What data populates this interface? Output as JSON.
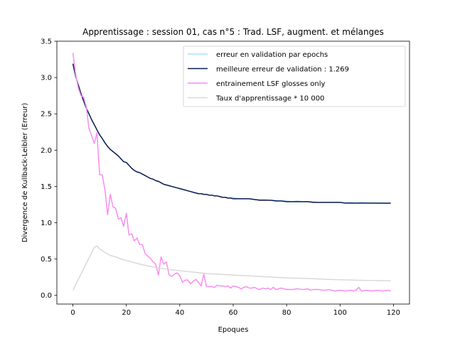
{
  "chart_data": {
    "type": "line",
    "title": "Apprentissage : session 01, cas n°5 : Trad. LSF, augment. et mélanges",
    "xlabel": "Epoques",
    "ylabel": "Divergence de Kullback-Leibler (Erreur)",
    "xlim": [
      -6,
      126
    ],
    "ylim": [
      -0.12,
      3.5
    ],
    "xticks": [
      0,
      20,
      40,
      60,
      80,
      100,
      120
    ],
    "yticks": [
      0.0,
      0.5,
      1.0,
      1.5,
      2.0,
      2.5,
      3.0,
      3.5
    ],
    "xtick_labels": [
      "0",
      "20",
      "40",
      "60",
      "80",
      "100",
      "120"
    ],
    "ytick_labels": [
      "0.0",
      "0.5",
      "1.0",
      "1.5",
      "2.0",
      "2.5",
      "3.0",
      "3.5"
    ],
    "grid": false,
    "legend_position": "top-right",
    "series": [
      {
        "name": "erreur en validation par epochs",
        "color": "#a6e3f7",
        "points": [
          [
            0,
            3.19
          ],
          [
            1,
            3.02
          ],
          [
            2,
            2.9
          ],
          [
            3,
            2.78
          ],
          [
            4,
            2.68
          ],
          [
            5,
            2.58
          ],
          [
            6,
            2.5
          ],
          [
            7,
            2.42
          ],
          [
            8,
            2.35
          ],
          [
            9,
            2.28
          ],
          [
            10,
            2.21
          ],
          [
            11,
            2.16
          ],
          [
            12,
            2.1
          ],
          [
            13,
            2.05
          ],
          [
            14,
            2.01
          ],
          [
            15,
            1.98
          ],
          [
            16,
            1.95
          ],
          [
            17,
            1.92
          ],
          [
            18,
            1.88
          ],
          [
            19,
            1.84
          ],
          [
            20,
            1.83
          ],
          [
            21,
            1.79
          ],
          [
            22,
            1.75
          ],
          [
            23,
            1.72
          ],
          [
            24,
            1.7
          ],
          [
            25,
            1.69
          ],
          [
            26,
            1.67
          ],
          [
            27,
            1.65
          ],
          [
            28,
            1.63
          ],
          [
            29,
            1.61
          ],
          [
            30,
            1.6
          ],
          [
            31,
            1.58
          ],
          [
            32,
            1.57
          ],
          [
            33,
            1.55
          ],
          [
            34,
            1.53
          ],
          [
            35,
            1.52
          ],
          [
            36,
            1.51
          ],
          [
            37,
            1.5
          ],
          [
            38,
            1.49
          ],
          [
            39,
            1.48
          ],
          [
            40,
            1.47
          ],
          [
            41,
            1.46
          ],
          [
            42,
            1.45
          ],
          [
            43,
            1.44
          ],
          [
            44,
            1.43
          ],
          [
            45,
            1.42
          ],
          [
            46,
            1.41
          ],
          [
            47,
            1.4
          ],
          [
            48,
            1.4
          ],
          [
            49,
            1.39
          ],
          [
            50,
            1.39
          ],
          [
            51,
            1.38
          ],
          [
            52,
            1.38
          ],
          [
            53,
            1.37
          ],
          [
            54,
            1.37
          ],
          [
            55,
            1.36
          ],
          [
            56,
            1.35
          ],
          [
            57,
            1.35
          ],
          [
            58,
            1.34
          ],
          [
            59,
            1.34
          ],
          [
            60,
            1.35
          ],
          [
            62,
            1.33
          ],
          [
            64,
            1.33
          ],
          [
            66,
            1.33
          ],
          [
            68,
            1.32
          ],
          [
            70,
            1.32
          ],
          [
            72,
            1.32
          ],
          [
            74,
            1.31
          ],
          [
            76,
            1.31
          ],
          [
            78,
            1.3
          ],
          [
            80,
            1.3
          ],
          [
            82,
            1.29
          ],
          [
            84,
            1.3
          ],
          [
            86,
            1.29
          ],
          [
            88,
            1.29
          ],
          [
            90,
            1.29
          ],
          [
            92,
            1.28
          ],
          [
            94,
            1.28
          ],
          [
            96,
            1.28
          ],
          [
            98,
            1.28
          ],
          [
            100,
            1.28
          ],
          [
            102,
            1.27
          ],
          [
            104,
            1.28
          ],
          [
            106,
            1.27
          ],
          [
            108,
            1.28
          ],
          [
            110,
            1.27
          ],
          [
            112,
            1.27
          ],
          [
            114,
            1.27
          ],
          [
            116,
            1.27
          ],
          [
            119,
            1.27
          ]
        ]
      },
      {
        "name": "meilleure erreur de validation : 1.269",
        "color": "#0b1a4e",
        "points": [
          [
            0,
            3.19
          ],
          [
            1,
            3.02
          ],
          [
            2,
            2.9
          ],
          [
            3,
            2.78
          ],
          [
            4,
            2.68
          ],
          [
            5,
            2.58
          ],
          [
            6,
            2.5
          ],
          [
            7,
            2.42
          ],
          [
            8,
            2.35
          ],
          [
            9,
            2.28
          ],
          [
            10,
            2.21
          ],
          [
            11,
            2.16
          ],
          [
            12,
            2.1
          ],
          [
            13,
            2.05
          ],
          [
            14,
            2.01
          ],
          [
            15,
            1.98
          ],
          [
            16,
            1.95
          ],
          [
            17,
            1.92
          ],
          [
            18,
            1.88
          ],
          [
            19,
            1.84
          ],
          [
            20,
            1.83
          ],
          [
            21,
            1.79
          ],
          [
            22,
            1.75
          ],
          [
            23,
            1.72
          ],
          [
            24,
            1.7
          ],
          [
            25,
            1.69
          ],
          [
            26,
            1.67
          ],
          [
            27,
            1.65
          ],
          [
            28,
            1.63
          ],
          [
            29,
            1.61
          ],
          [
            30,
            1.6
          ],
          [
            31,
            1.58
          ],
          [
            32,
            1.57
          ],
          [
            33,
            1.55
          ],
          [
            34,
            1.53
          ],
          [
            35,
            1.52
          ],
          [
            36,
            1.51
          ],
          [
            37,
            1.5
          ],
          [
            38,
            1.49
          ],
          [
            39,
            1.48
          ],
          [
            40,
            1.47
          ],
          [
            41,
            1.46
          ],
          [
            42,
            1.45
          ],
          [
            43,
            1.44
          ],
          [
            44,
            1.43
          ],
          [
            45,
            1.42
          ],
          [
            46,
            1.41
          ],
          [
            47,
            1.4
          ],
          [
            48,
            1.4
          ],
          [
            49,
            1.39
          ],
          [
            50,
            1.39
          ],
          [
            51,
            1.38
          ],
          [
            52,
            1.38
          ],
          [
            53,
            1.37
          ],
          [
            54,
            1.37
          ],
          [
            55,
            1.36
          ],
          [
            56,
            1.35
          ],
          [
            57,
            1.35
          ],
          [
            58,
            1.34
          ],
          [
            59,
            1.34
          ],
          [
            60,
            1.33
          ],
          [
            62,
            1.33
          ],
          [
            64,
            1.33
          ],
          [
            66,
            1.33
          ],
          [
            68,
            1.32
          ],
          [
            70,
            1.31
          ],
          [
            72,
            1.31
          ],
          [
            74,
            1.31
          ],
          [
            76,
            1.3
          ],
          [
            78,
            1.3
          ],
          [
            80,
            1.29
          ],
          [
            84,
            1.29
          ],
          [
            88,
            1.29
          ],
          [
            90,
            1.28
          ],
          [
            94,
            1.28
          ],
          [
            98,
            1.28
          ],
          [
            100,
            1.28
          ],
          [
            102,
            1.27
          ],
          [
            110,
            1.27
          ],
          [
            119,
            1.269
          ]
        ]
      },
      {
        "name": "entrainement LSF glosses only",
        "color": "#f78ef0",
        "points": [
          [
            0,
            3.34
          ],
          [
            1,
            3.05
          ],
          [
            2,
            2.86
          ],
          [
            3,
            2.75
          ],
          [
            4,
            2.73
          ],
          [
            5,
            2.6
          ],
          [
            6,
            2.3
          ],
          [
            7,
            2.2
          ],
          [
            8,
            2.09
          ],
          [
            9,
            2.24
          ],
          [
            10,
            1.66
          ],
          [
            11,
            1.66
          ],
          [
            12,
            1.45
          ],
          [
            13,
            1.11
          ],
          [
            14,
            1.39
          ],
          [
            15,
            1.22
          ],
          [
            16,
            1.2
          ],
          [
            17,
            1.05
          ],
          [
            18,
            1.07
          ],
          [
            19,
            0.95
          ],
          [
            20,
            1.13
          ],
          [
            21,
            0.83
          ],
          [
            22,
            0.85
          ],
          [
            23,
            0.75
          ],
          [
            24,
            0.79
          ],
          [
            25,
            0.7
          ],
          [
            26,
            0.7
          ],
          [
            27,
            0.58
          ],
          [
            28,
            0.54
          ],
          [
            29,
            0.51
          ],
          [
            30,
            0.46
          ],
          [
            31,
            0.43
          ],
          [
            32,
            0.28
          ],
          [
            33,
            0.53
          ],
          [
            34,
            0.43
          ],
          [
            35,
            0.46
          ],
          [
            36,
            0.28
          ],
          [
            37,
            0.26
          ],
          [
            38,
            0.29
          ],
          [
            39,
            0.31
          ],
          [
            40,
            0.27
          ],
          [
            41,
            0.18
          ],
          [
            42,
            0.21
          ],
          [
            43,
            0.21
          ],
          [
            44,
            0.16
          ],
          [
            45,
            0.19
          ],
          [
            46,
            0.22
          ],
          [
            47,
            0.18
          ],
          [
            48,
            0.13
          ],
          [
            49,
            0.29
          ],
          [
            50,
            0.12
          ],
          [
            52,
            0.12
          ],
          [
            53,
            0.11
          ],
          [
            54,
            0.14
          ],
          [
            55,
            0.13
          ],
          [
            56,
            0.13
          ],
          [
            57,
            0.12
          ],
          [
            58,
            0.13
          ],
          [
            59,
            0.1
          ],
          [
            60,
            0.13
          ],
          [
            61,
            0.12
          ],
          [
            62,
            0.11
          ],
          [
            63,
            0.09
          ],
          [
            64,
            0.11
          ],
          [
            65,
            0.12
          ],
          [
            66,
            0.1
          ],
          [
            67,
            0.1
          ],
          [
            68,
            0.11
          ],
          [
            69,
            0.09
          ],
          [
            70,
            0.08
          ],
          [
            71,
            0.1
          ],
          [
            72,
            0.09
          ],
          [
            73,
            0.1
          ],
          [
            74,
            0.08
          ],
          [
            75,
            0.11
          ],
          [
            76,
            0.08
          ],
          [
            78,
            0.1
          ],
          [
            80,
            0.08
          ],
          [
            82,
            0.08
          ],
          [
            84,
            0.09
          ],
          [
            86,
            0.08
          ],
          [
            88,
            0.09
          ],
          [
            89,
            0.07
          ],
          [
            90,
            0.08
          ],
          [
            92,
            0.08
          ],
          [
            94,
            0.07
          ],
          [
            96,
            0.08
          ],
          [
            98,
            0.06
          ],
          [
            100,
            0.07
          ],
          [
            102,
            0.06
          ],
          [
            104,
            0.07
          ],
          [
            105,
            0.06
          ],
          [
            106,
            0.07
          ],
          [
            107,
            0.11
          ],
          [
            108,
            0.06
          ],
          [
            110,
            0.07
          ],
          [
            112,
            0.06
          ],
          [
            114,
            0.07
          ],
          [
            116,
            0.06
          ],
          [
            118,
            0.07
          ],
          [
            119,
            0.06
          ]
        ]
      },
      {
        "name": "Taux d'apprentissage * 10 000",
        "color": "#d9d9d9",
        "points": [
          [
            0,
            0.07
          ],
          [
            8,
            0.66
          ],
          [
            9,
            0.68
          ],
          [
            10,
            0.64
          ],
          [
            12,
            0.59
          ],
          [
            14,
            0.55
          ],
          [
            16,
            0.53
          ],
          [
            18,
            0.5
          ],
          [
            20,
            0.48
          ],
          [
            25,
            0.43
          ],
          [
            30,
            0.39
          ],
          [
            35,
            0.36
          ],
          [
            40,
            0.34
          ],
          [
            45,
            0.32
          ],
          [
            50,
            0.3
          ],
          [
            55,
            0.29
          ],
          [
            60,
            0.28
          ],
          [
            65,
            0.27
          ],
          [
            70,
            0.26
          ],
          [
            75,
            0.25
          ],
          [
            80,
            0.24
          ],
          [
            85,
            0.235
          ],
          [
            90,
            0.23
          ],
          [
            95,
            0.22
          ],
          [
            100,
            0.215
          ],
          [
            105,
            0.21
          ],
          [
            110,
            0.205
          ],
          [
            119,
            0.2
          ]
        ]
      }
    ]
  }
}
